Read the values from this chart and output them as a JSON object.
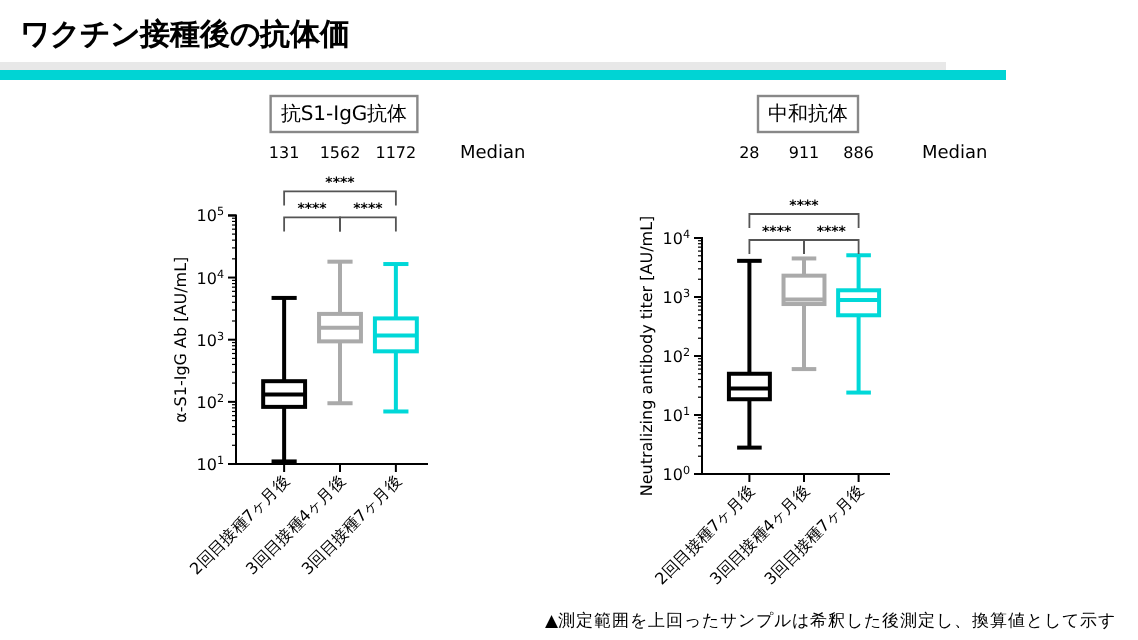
{
  "chart_data": [
    {
      "type": "box",
      "title": "抗S1-IgG抗体",
      "ylabel": "α-S1-IgG Ab [AU/mL]",
      "categories": [
        "2回目接種7ヶ月後",
        "3回目接種4ヶ月後",
        "3回目接種7ヶ月後"
      ],
      "log": true,
      "ylim": [
        10,
        100000
      ],
      "yticks": [
        {
          "value": 10,
          "label": "10$^{1}$"
        },
        {
          "value": 100,
          "label": "10$^{2}$"
        },
        {
          "value": 1000,
          "label": "10$^{3}$"
        },
        {
          "value": 10000,
          "label": "10$^{4}$"
        },
        {
          "value": 100000,
          "label": "10$^{5}$"
        }
      ],
      "colors": [
        "#000000",
        "#aaaaaa",
        "#00d8d8"
      ],
      "boxes": [
        {
          "low": 11,
          "q1": 83,
          "median": 131,
          "q3": 215,
          "high": 4700
        },
        {
          "low": 95,
          "q1": 940,
          "median": 1562,
          "q3": 2600,
          "high": 18000
        },
        {
          "low": 70,
          "q1": 650,
          "median": 1172,
          "q3": 2200,
          "high": 16500
        }
      ],
      "annotations": [
        "131",
        "1562",
        "1172",
        "Median",
        "****",
        "****",
        "****",
        "ワクチン接種後の抗体価"
      ]
    },
    {
      "type": "box",
      "title": "中和抗体",
      "ylabel": "Neutralizing antibody titer [AU/mL]",
      "categories": [
        "2回目接種7ヶ月後",
        "3回目接種4ヶ月後",
        "3回目接種7ヶ月後"
      ],
      "log": true,
      "ylim": [
        1,
        10000
      ],
      "yticks": [
        {
          "value": 1,
          "label": "10$^{0}$"
        },
        {
          "value": 10,
          "label": "10$^{1}$"
        },
        {
          "value": 100,
          "label": "10$^{2}$"
        },
        {
          "value": 1000,
          "label": "10$^{3}$"
        },
        {
          "value": 10000,
          "label": "10$^{4}$"
        }
      ],
      "colors": [
        "#000000",
        "#aaaaaa",
        "#00d8d8"
      ],
      "boxes": [
        {
          "low": 2.8,
          "q1": 18.5,
          "median": 28,
          "q3": 50,
          "high": 4100
        },
        {
          "low": 60,
          "q1": 760,
          "median": 911,
          "q3": 2300,
          "high": 4500
        },
        {
          "low": 24,
          "q1": 490,
          "median": 886,
          "q3": 1300,
          "high": 5100
        }
      ],
      "annotations": [
        "28",
        "911",
        "886",
        "Median",
        "****",
        "****",
        "****",
        "▲測定範囲を上回ったサンプルは希釈した後測定し、換算値として示す"
      ]
    }
  ]
}
